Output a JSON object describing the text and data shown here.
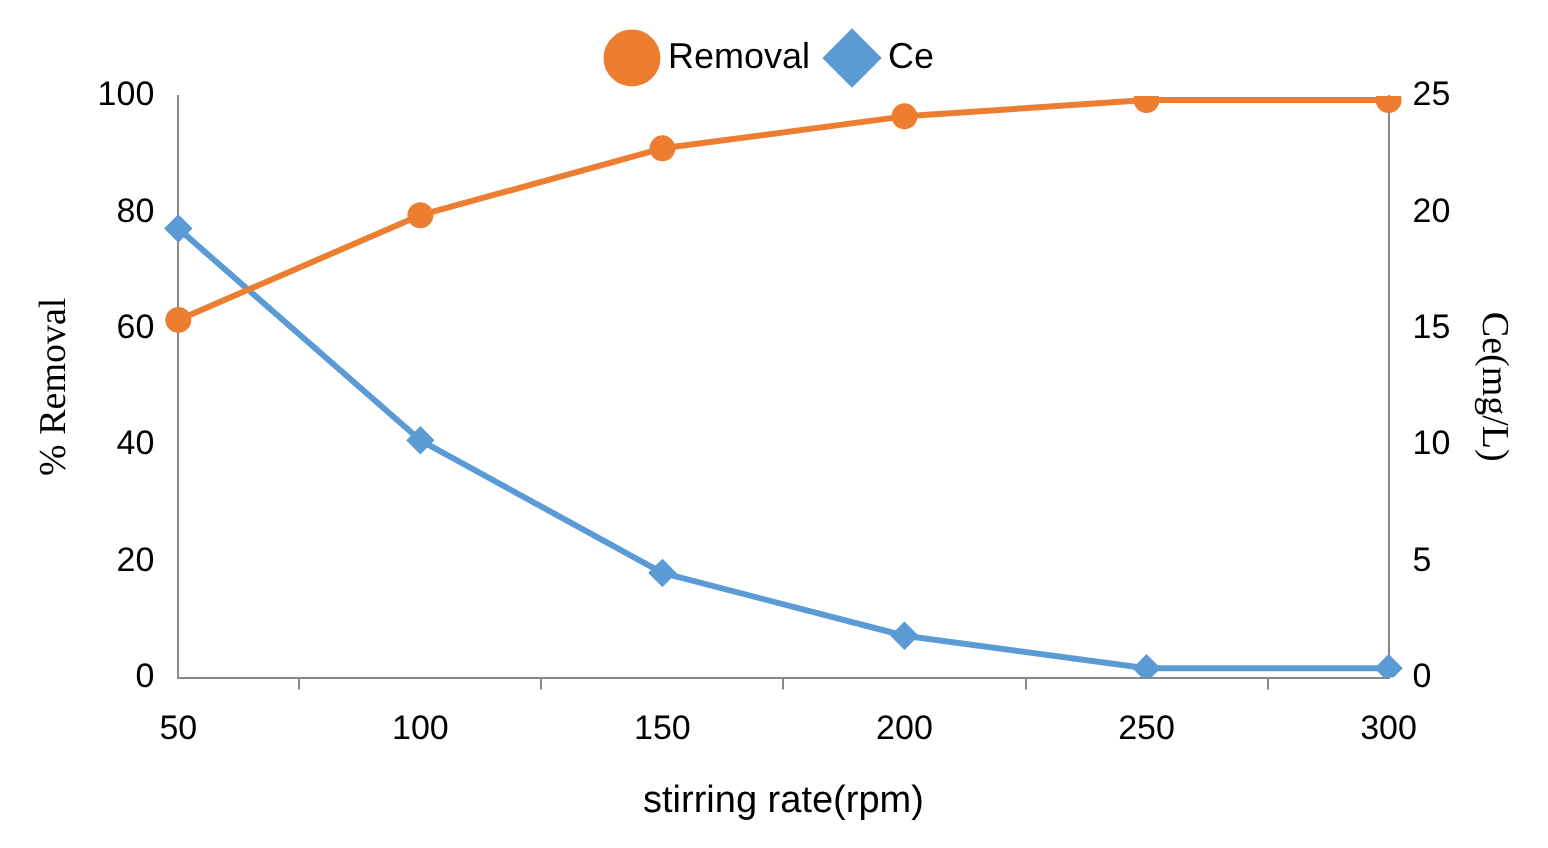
{
  "chart_data": {
    "type": "line",
    "xlabel": "stirring rate(rpm)",
    "ylabel": "% Removal",
    "y2label": "Ce(mg/L)",
    "categories": [
      "50",
      "100",
      "150",
      "200",
      "250",
      "300"
    ],
    "series": [
      {
        "name": "Removal",
        "color": "#ed7d31",
        "marker": "circle",
        "values": [
          61.5,
          79.5,
          91,
          96.5,
          99.3,
          99.3
        ]
      },
      {
        "name": "Ce",
        "color": "#5b9bd5",
        "marker": "diamond",
        "axis": "y2",
        "values": [
          19.3,
          10.2,
          4.5,
          1.8,
          0.4,
          0.4
        ]
      }
    ],
    "ylim": [
      0,
      100
    ],
    "yticks": [
      0,
      20,
      40,
      60,
      80,
      100
    ],
    "y2lim": [
      0,
      25
    ],
    "y2ticks": [
      0,
      5,
      10,
      15,
      20,
      25
    ],
    "legend": "top",
    "grid": false
  }
}
